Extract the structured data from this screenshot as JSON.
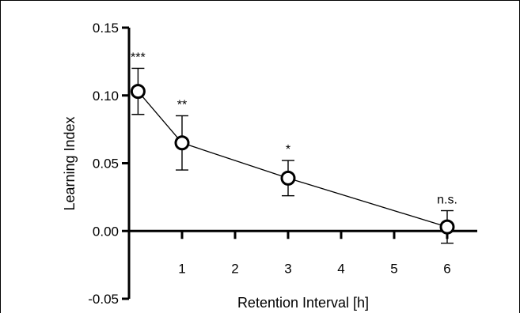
{
  "chart_data": {
    "type": "line",
    "xlabel": "Retention Interval [h]",
    "ylabel": "Learning Index",
    "ylim": [
      -0.05,
      0.15
    ],
    "yticks": [
      "0.15",
      "0.10",
      "0.05",
      "0.00",
      "-0.05"
    ],
    "ytick_values": [
      0.15,
      0.1,
      0.05,
      0.0,
      -0.05
    ],
    "xticks": [
      "1",
      "2",
      "3",
      "4",
      "5",
      "6"
    ],
    "xtick_values": [
      1,
      2,
      3,
      4,
      5,
      6
    ],
    "grid": false,
    "series": [
      {
        "points": [
          {
            "x": 0.17,
            "y": 0.103,
            "err": 0.017,
            "label": "***"
          },
          {
            "x": 1.0,
            "y": 0.065,
            "err": 0.02,
            "label": "**"
          },
          {
            "x": 3.0,
            "y": 0.039,
            "err": 0.013,
            "label": "*"
          },
          {
            "x": 6.0,
            "y": 0.003,
            "err": 0.012,
            "label": "n.s."
          }
        ]
      }
    ]
  }
}
